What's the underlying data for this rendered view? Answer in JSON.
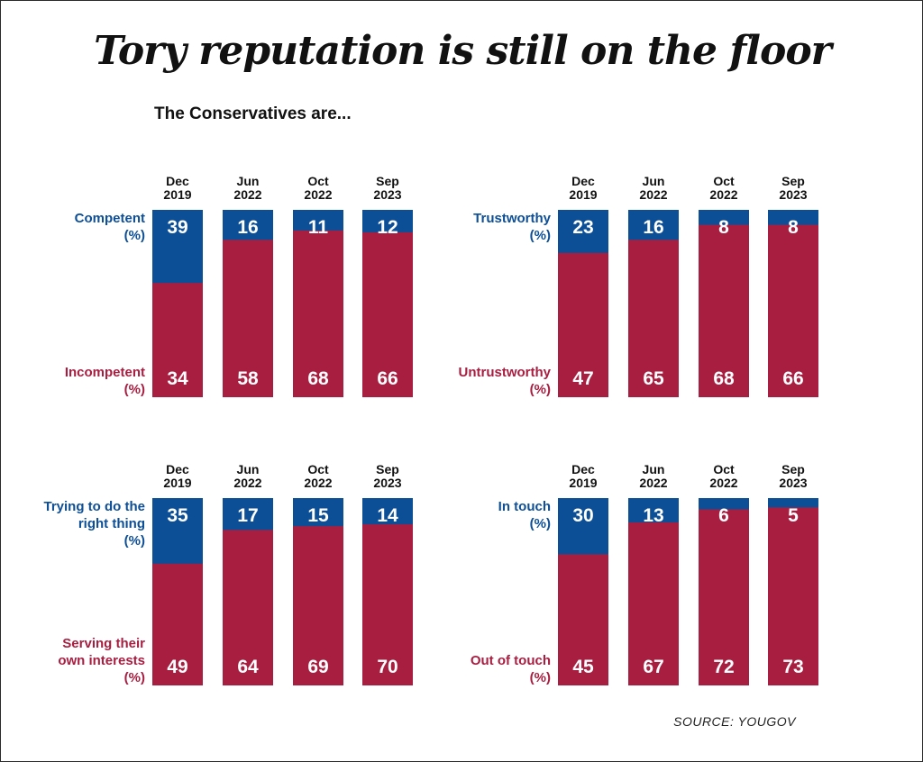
{
  "title": "Tory reputation is still on the floor",
  "subtitle": "The Conservatives are...",
  "source": "SOURCE: YOUGOV",
  "colors": {
    "positive": "#0d4f96",
    "negative": "#a81e40"
  },
  "chart_data": [
    {
      "type": "bar",
      "stacked": true,
      "categories": [
        [
          "Dec",
          "2019"
        ],
        [
          "Jun",
          "2022"
        ],
        [
          "Oct",
          "2022"
        ],
        [
          "Sep",
          "2023"
        ]
      ],
      "series": [
        {
          "name": "Competent (%)",
          "label_lines": [
            "Competent",
            "(%)"
          ],
          "values": [
            39,
            16,
            11,
            12
          ]
        },
        {
          "name": "Incompetent (%)",
          "label_lines": [
            "Incompetent",
            "(%)"
          ],
          "values": [
            34,
            58,
            68,
            66
          ]
        }
      ]
    },
    {
      "type": "bar",
      "stacked": true,
      "categories": [
        [
          "Dec",
          "2019"
        ],
        [
          "Jun",
          "2022"
        ],
        [
          "Oct",
          "2022"
        ],
        [
          "Sep",
          "2023"
        ]
      ],
      "series": [
        {
          "name": "Trustworthy (%)",
          "label_lines": [
            "Trustworthy",
            "(%)"
          ],
          "values": [
            23,
            16,
            8,
            8
          ]
        },
        {
          "name": "Untrustworthy (%)",
          "label_lines": [
            "Untrustworthy",
            "(%)"
          ],
          "values": [
            47,
            65,
            68,
            66
          ]
        }
      ]
    },
    {
      "type": "bar",
      "stacked": true,
      "categories": [
        [
          "Dec",
          "2019"
        ],
        [
          "Jun",
          "2022"
        ],
        [
          "Oct",
          "2022"
        ],
        [
          "Sep",
          "2023"
        ]
      ],
      "series": [
        {
          "name": "Trying to do the right thing (%)",
          "label_lines": [
            "Trying to do the",
            "right thing",
            "(%)"
          ],
          "values": [
            35,
            17,
            15,
            14
          ]
        },
        {
          "name": "Serving their own interests (%)",
          "label_lines": [
            "Serving their",
            "own interests",
            "(%)"
          ],
          "values": [
            49,
            64,
            69,
            70
          ]
        }
      ]
    },
    {
      "type": "bar",
      "stacked": true,
      "categories": [
        [
          "Dec",
          "2019"
        ],
        [
          "Jun",
          "2022"
        ],
        [
          "Oct",
          "2022"
        ],
        [
          "Sep",
          "2023"
        ]
      ],
      "series": [
        {
          "name": "In touch (%)",
          "label_lines": [
            "In touch",
            "(%)"
          ],
          "values": [
            30,
            13,
            6,
            5
          ]
        },
        {
          "name": "Out of touch (%)",
          "label_lines": [
            "Out of touch",
            "(%)"
          ],
          "values": [
            45,
            67,
            72,
            73
          ]
        }
      ]
    }
  ]
}
